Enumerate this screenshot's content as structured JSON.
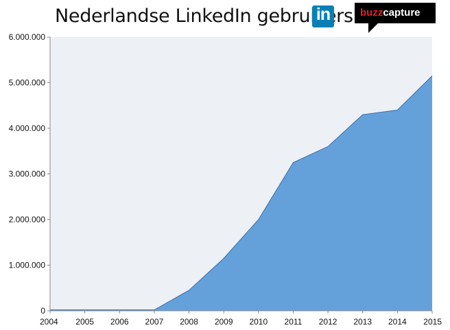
{
  "header": {
    "title": "Nederlandse LinkedIn gebruikers",
    "linkedin_logo_text": "in",
    "buzzcapture_logo": {
      "part1": "buzz",
      "part2": "capture"
    }
  },
  "colors": {
    "plot_background": "#edf0f5",
    "area_fill": "#64a1db",
    "area_stroke": "#3f6fa8",
    "linkedin_blue": "#0b7fb4",
    "buzz_red": "#e11d2a"
  },
  "chart_data": {
    "type": "area",
    "title": "Nederlandse LinkedIn gebruikers",
    "xlabel": "",
    "ylabel": "",
    "x": [
      "2004",
      "2005",
      "2006",
      "2007",
      "2008",
      "2009",
      "2010",
      "2011",
      "2012",
      "2013",
      "2014",
      "2015"
    ],
    "values": [
      20000,
      20000,
      20000,
      20000,
      450000,
      1150000,
      2000000,
      3250000,
      3600000,
      4300000,
      4400000,
      5150000
    ],
    "ylim": [
      0,
      6000000
    ],
    "yticks": [
      "0",
      "1.000.000",
      "2.000.000",
      "3.000.000",
      "4.000.000",
      "5.000.000",
      "6.000.000"
    ],
    "grid": false,
    "legend": "none"
  }
}
